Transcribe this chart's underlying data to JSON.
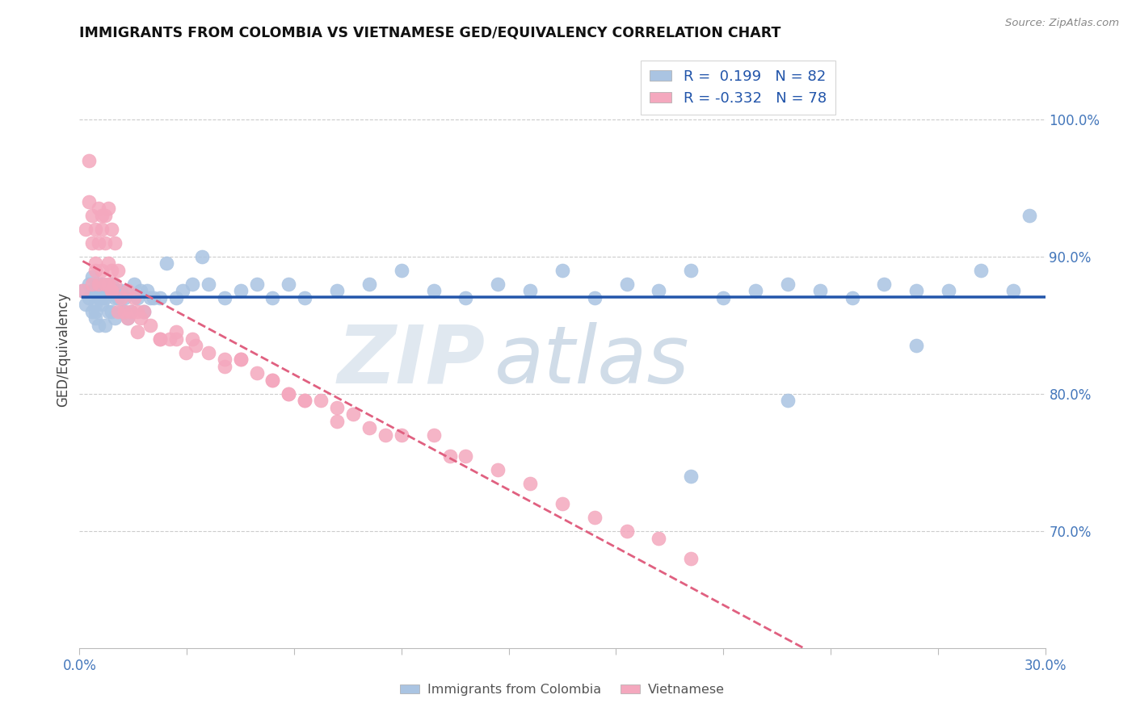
{
  "title": "IMMIGRANTS FROM COLOMBIA VS VIETNAMESE GED/EQUIVALENCY CORRELATION CHART",
  "source": "Source: ZipAtlas.com",
  "ylabel": "GED/Equivalency",
  "ytick_labels": [
    "100.0%",
    "90.0%",
    "80.0%",
    "70.0%"
  ],
  "ytick_values": [
    1.0,
    0.9,
    0.8,
    0.7
  ],
  "xlim": [
    0.0,
    0.3
  ],
  "ylim": [
    0.615,
    1.05
  ],
  "legend_colombia_r": "0.199",
  "legend_colombia_n": "82",
  "legend_vietnamese_r": "-0.332",
  "legend_vietnamese_n": "78",
  "colombia_color": "#aac4e2",
  "vietnamese_color": "#f4a8be",
  "colombia_line_color": "#2255aa",
  "vietnamese_line_color": "#e06080",
  "watermark_zip": "ZIP",
  "watermark_atlas": "atlas",
  "bottom_legend_left": "Immigrants from Colombia",
  "bottom_legend_right": "Vietnamese",
  "colombia_points_x": [
    0.001,
    0.002,
    0.003,
    0.003,
    0.004,
    0.004,
    0.004,
    0.005,
    0.005,
    0.005,
    0.005,
    0.006,
    0.006,
    0.006,
    0.007,
    0.007,
    0.007,
    0.008,
    0.008,
    0.008,
    0.009,
    0.009,
    0.01,
    0.01,
    0.01,
    0.011,
    0.011,
    0.012,
    0.012,
    0.013,
    0.013,
    0.014,
    0.014,
    0.015,
    0.015,
    0.016,
    0.017,
    0.018,
    0.019,
    0.02,
    0.021,
    0.022,
    0.023,
    0.025,
    0.027,
    0.03,
    0.032,
    0.035,
    0.038,
    0.04,
    0.045,
    0.05,
    0.055,
    0.06,
    0.065,
    0.07,
    0.08,
    0.09,
    0.1,
    0.11,
    0.12,
    0.13,
    0.14,
    0.15,
    0.16,
    0.17,
    0.18,
    0.19,
    0.2,
    0.21,
    0.22,
    0.23,
    0.24,
    0.25,
    0.26,
    0.27,
    0.28,
    0.29,
    0.295,
    0.22,
    0.19,
    0.26
  ],
  "colombia_points_y": [
    0.875,
    0.865,
    0.87,
    0.88,
    0.86,
    0.875,
    0.885,
    0.86,
    0.875,
    0.855,
    0.865,
    0.875,
    0.87,
    0.85,
    0.88,
    0.87,
    0.865,
    0.87,
    0.85,
    0.875,
    0.86,
    0.875,
    0.86,
    0.875,
    0.88,
    0.87,
    0.855,
    0.875,
    0.87,
    0.86,
    0.875,
    0.86,
    0.87,
    0.855,
    0.875,
    0.86,
    0.88,
    0.87,
    0.875,
    0.86,
    0.875,
    0.87,
    0.87,
    0.87,
    0.895,
    0.87,
    0.875,
    0.88,
    0.9,
    0.88,
    0.87,
    0.875,
    0.88,
    0.87,
    0.88,
    0.87,
    0.875,
    0.88,
    0.89,
    0.875,
    0.87,
    0.88,
    0.875,
    0.89,
    0.87,
    0.88,
    0.875,
    0.89,
    0.87,
    0.875,
    0.88,
    0.875,
    0.87,
    0.88,
    0.875,
    0.875,
    0.89,
    0.875,
    0.93,
    0.795,
    0.74,
    0.835
  ],
  "vietnamese_points_x": [
    0.001,
    0.002,
    0.003,
    0.003,
    0.004,
    0.004,
    0.004,
    0.005,
    0.005,
    0.005,
    0.006,
    0.006,
    0.006,
    0.007,
    0.007,
    0.007,
    0.008,
    0.008,
    0.008,
    0.009,
    0.009,
    0.009,
    0.01,
    0.01,
    0.01,
    0.011,
    0.011,
    0.012,
    0.013,
    0.014,
    0.015,
    0.016,
    0.017,
    0.018,
    0.019,
    0.02,
    0.022,
    0.025,
    0.028,
    0.03,
    0.033,
    0.036,
    0.04,
    0.045,
    0.05,
    0.055,
    0.06,
    0.065,
    0.07,
    0.075,
    0.08,
    0.085,
    0.09,
    0.1,
    0.11,
    0.12,
    0.13,
    0.14,
    0.15,
    0.16,
    0.17,
    0.18,
    0.19,
    0.06,
    0.07,
    0.05,
    0.03,
    0.025,
    0.035,
    0.045,
    0.065,
    0.08,
    0.095,
    0.115,
    0.01,
    0.012,
    0.015,
    0.018
  ],
  "vietnamese_points_y": [
    0.875,
    0.92,
    0.97,
    0.94,
    0.91,
    0.88,
    0.93,
    0.92,
    0.89,
    0.895,
    0.91,
    0.935,
    0.88,
    0.93,
    0.92,
    0.89,
    0.91,
    0.88,
    0.93,
    0.88,
    0.895,
    0.935,
    0.92,
    0.89,
    0.875,
    0.91,
    0.88,
    0.89,
    0.87,
    0.86,
    0.875,
    0.86,
    0.87,
    0.86,
    0.855,
    0.86,
    0.85,
    0.84,
    0.84,
    0.84,
    0.83,
    0.835,
    0.83,
    0.82,
    0.825,
    0.815,
    0.81,
    0.8,
    0.795,
    0.795,
    0.79,
    0.785,
    0.775,
    0.77,
    0.77,
    0.755,
    0.745,
    0.735,
    0.72,
    0.71,
    0.7,
    0.695,
    0.68,
    0.81,
    0.795,
    0.825,
    0.845,
    0.84,
    0.84,
    0.825,
    0.8,
    0.78,
    0.77,
    0.755,
    0.875,
    0.86,
    0.855,
    0.845
  ]
}
